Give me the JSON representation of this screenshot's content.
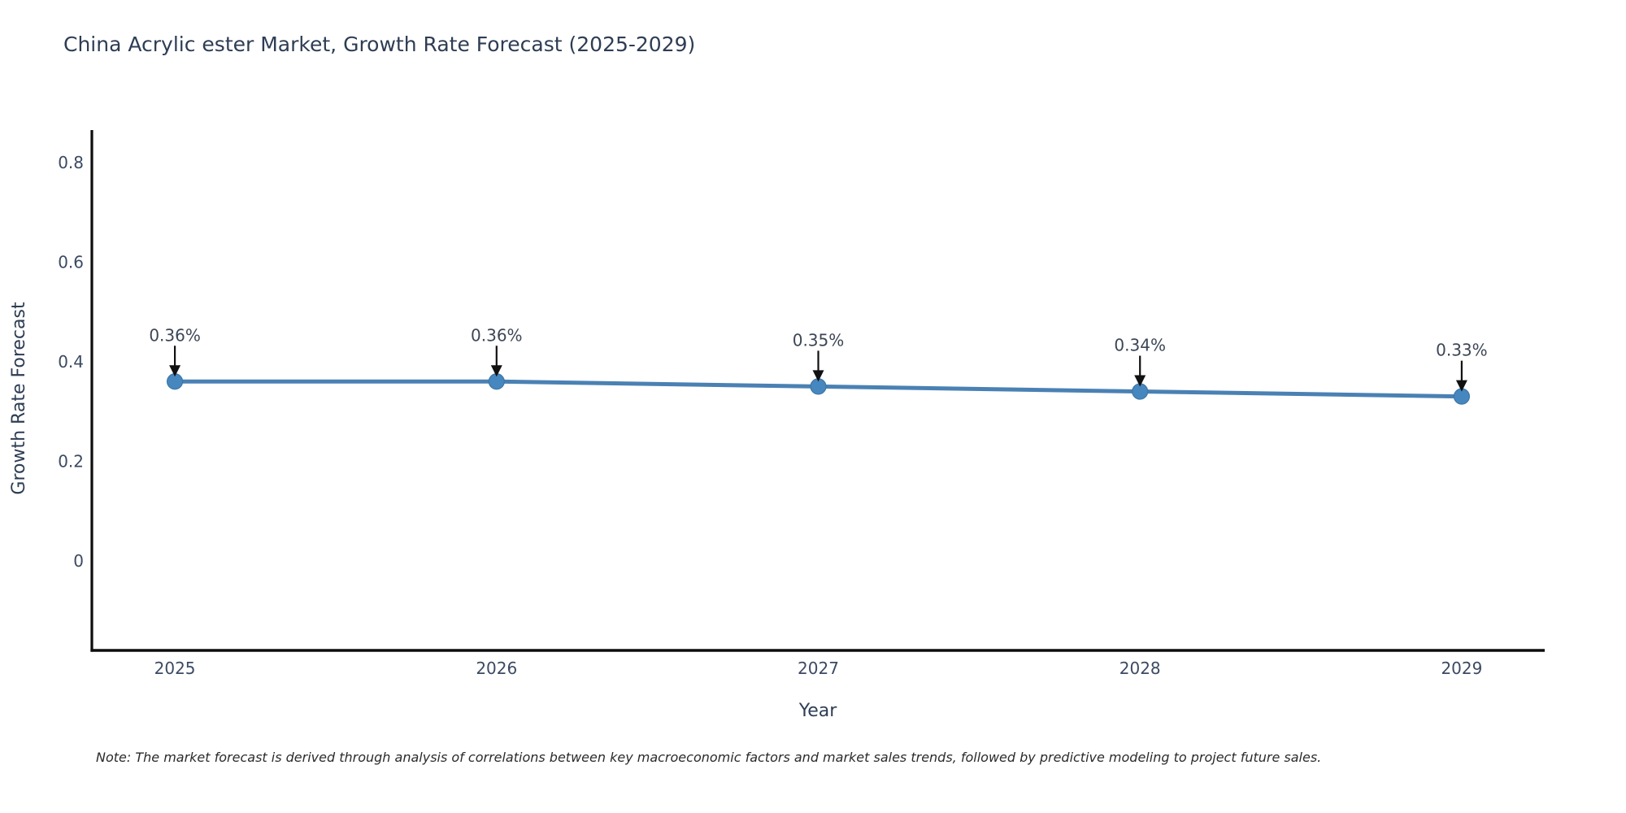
{
  "note": "Note: The market forecast is derived through analysis of correlations between key macroeconomic factors and market sales trends, followed by predictive modeling to project future sales.",
  "chart_data": {
    "type": "line",
    "title": "China Acrylic ester Market, Growth Rate Forecast (2025-2029)",
    "xlabel": "Year",
    "ylabel": "Growth Rate Forecast",
    "x": [
      2025,
      2026,
      2027,
      2028,
      2029
    ],
    "y": [
      0.36,
      0.36,
      0.35,
      0.34,
      0.33
    ],
    "point_labels": [
      "0.36%",
      "0.36%",
      "0.35%",
      "0.34%",
      "0.33%"
    ],
    "xticks": [
      "2025",
      "2026",
      "2027",
      "2028",
      "2029"
    ],
    "yticks": [
      0,
      0.2,
      0.4,
      0.6,
      0.8
    ],
    "xlim": [
      2024.742,
      2029.258
    ],
    "ylim": [
      -0.18,
      0.865
    ],
    "grid": false,
    "legend": false,
    "marker_style": "circle",
    "annotation_arrow": "down-arrow",
    "colors": {
      "line": "#4a81b4",
      "marker_fill": "#4787bf",
      "marker_edge": "#3d76a6",
      "axis_line": "#0d0d0d",
      "arrow": "#111111",
      "text": "#2e3d54",
      "tick_text": "#3b4a63",
      "annotation_text": "#3d4656",
      "note_text": "#2b2b2b",
      "background": "#ffffff"
    }
  }
}
